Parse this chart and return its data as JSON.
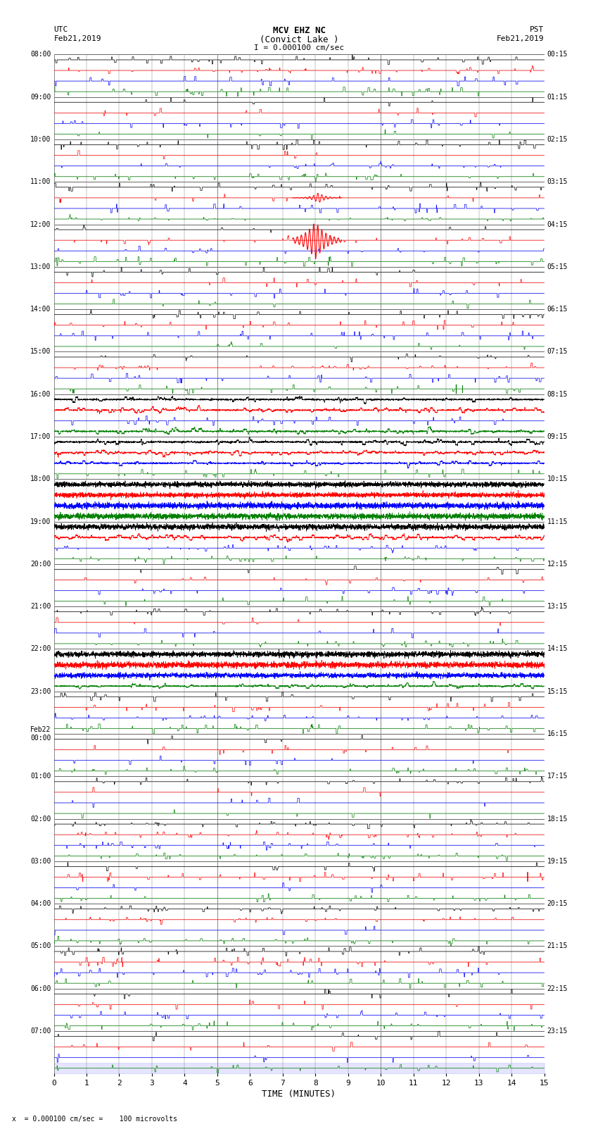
{
  "title_line1": "MCV EHZ NC",
  "title_line2": "(Convict Lake )",
  "title_line3": "I = 0.000100 cm/sec",
  "label_utc": "UTC",
  "label_date_left": "Feb21,2019",
  "label_pst": "PST",
  "label_date_right": "Feb21,2019",
  "xlabel": "TIME (MINUTES)",
  "footer": "x  = 0.000100 cm/sec =    100 microvolts",
  "left_times": [
    "08:00",
    "09:00",
    "10:00",
    "11:00",
    "12:00",
    "13:00",
    "14:00",
    "15:00",
    "16:00",
    "17:00",
    "18:00",
    "19:00",
    "20:00",
    "21:00",
    "22:00",
    "23:00",
    "Feb22\n00:00",
    "01:00",
    "02:00",
    "03:00",
    "04:00",
    "05:00",
    "06:00",
    "07:00"
  ],
  "right_times": [
    "00:15",
    "01:15",
    "02:15",
    "03:15",
    "04:15",
    "05:15",
    "06:15",
    "07:15",
    "08:15",
    "09:15",
    "10:15",
    "11:15",
    "12:15",
    "13:15",
    "14:15",
    "15:15",
    "16:15",
    "17:15",
    "18:15",
    "19:15",
    "20:15",
    "21:15",
    "22:15",
    "23:15"
  ],
  "n_hours": 24,
  "minutes": 15,
  "bg_color": "#ffffff",
  "grid_color": "#aaaaaa",
  "seed": 42
}
